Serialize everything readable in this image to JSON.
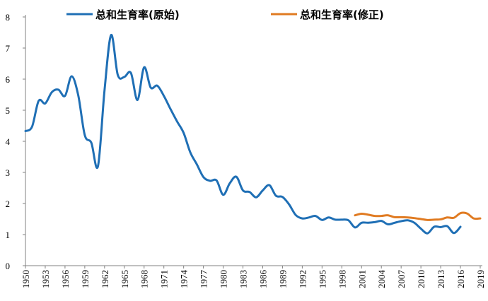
{
  "chart_data": {
    "type": "line",
    "title": "",
    "xlabel": "",
    "ylabel": "",
    "xlim": [
      1950,
      2019
    ],
    "ylim": [
      0,
      8
    ],
    "y_ticks": [
      "0",
      "1",
      "2",
      "3",
      "4",
      "5",
      "6",
      "7",
      "8"
    ],
    "x_ticks": [
      1950,
      1953,
      1956,
      1959,
      1962,
      1965,
      1968,
      1971,
      1974,
      1977,
      1980,
      1983,
      1986,
      1989,
      1992,
      1995,
      1998,
      2001,
      2004,
      2007,
      2010,
      2013,
      2016,
      2019
    ],
    "x_tick_labels": [
      "1950",
      "1953",
      "1956",
      "1959",
      "1962",
      "1965",
      "1968",
      "1971",
      "1974",
      "1977",
      "1980",
      "1983",
      "1986",
      "1989",
      "1992",
      "1995",
      "1998",
      "2001",
      "2004",
      "2007",
      "2010",
      "2013",
      "2016",
      "2019"
    ],
    "grid": false,
    "legend_position": "top",
    "series": [
      {
        "name": "总和生育率(原始)",
        "color": "#1F6FB5",
        "x": [
          1950,
          1951,
          1952,
          1953,
          1954,
          1955,
          1956,
          1957,
          1958,
          1959,
          1960,
          1961,
          1962,
          1963,
          1964,
          1965,
          1966,
          1967,
          1968,
          1969,
          1970,
          1971,
          1972,
          1973,
          1974,
          1975,
          1976,
          1977,
          1978,
          1979,
          1980,
          1981,
          1982,
          1983,
          1984,
          1985,
          1986,
          1987,
          1988,
          1989,
          1990,
          1991,
          1992,
          1993,
          1994,
          1995,
          1996,
          1997,
          1998,
          1999,
          2000,
          2001,
          2002,
          2003,
          2004,
          2005,
          2006,
          2007,
          2008,
          2009,
          2010,
          2011,
          2012,
          2013,
          2014,
          2015,
          2016
        ],
        "values": [
          4.33,
          4.47,
          5.3,
          5.22,
          5.58,
          5.66,
          5.46,
          6.09,
          5.49,
          4.2,
          3.95,
          3.2,
          5.65,
          7.42,
          6.14,
          6.07,
          6.2,
          5.33,
          6.38,
          5.73,
          5.79,
          5.46,
          5.04,
          4.64,
          4.27,
          3.65,
          3.26,
          2.85,
          2.73,
          2.74,
          2.28,
          2.65,
          2.86,
          2.42,
          2.37,
          2.2,
          2.42,
          2.59,
          2.25,
          2.21,
          1.97,
          1.63,
          1.52,
          1.55,
          1.6,
          1.47,
          1.55,
          1.48,
          1.48,
          1.46,
          1.23,
          1.38,
          1.38,
          1.4,
          1.44,
          1.33,
          1.38,
          1.43,
          1.46,
          1.38,
          1.19,
          1.04,
          1.25,
          1.24,
          1.27,
          1.05,
          1.25
        ]
      },
      {
        "name": "总和生育率(修正)",
        "color": "#E07B22",
        "x": [
          2000,
          2001,
          2002,
          2003,
          2004,
          2005,
          2006,
          2007,
          2008,
          2009,
          2010,
          2011,
          2012,
          2013,
          2014,
          2015,
          2016,
          2017,
          2018,
          2019
        ],
        "values": [
          1.62,
          1.67,
          1.64,
          1.6,
          1.6,
          1.62,
          1.56,
          1.56,
          1.55,
          1.53,
          1.5,
          1.47,
          1.48,
          1.49,
          1.55,
          1.54,
          1.69,
          1.68,
          1.52,
          1.52
        ]
      }
    ]
  }
}
